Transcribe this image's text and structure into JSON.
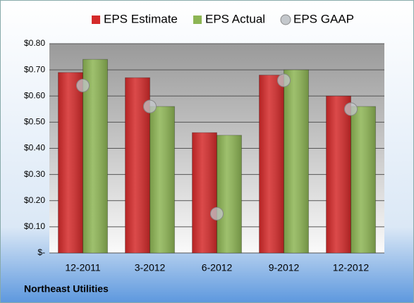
{
  "chart_data": {
    "type": "bar",
    "categories": [
      "12-2011",
      "3-2012",
      "6-2012",
      "9-2012",
      "12-2012"
    ],
    "series": [
      {
        "name": "EPS Estimate",
        "color": "#d42a2a",
        "marker": "bar",
        "values": [
          0.69,
          0.67,
          0.46,
          0.68,
          0.6
        ]
      },
      {
        "name": "EPS Actual",
        "color": "#8db554",
        "marker": "bar",
        "values": [
          0.74,
          0.56,
          0.45,
          0.7,
          0.56
        ]
      },
      {
        "name": "EPS GAAP",
        "color": "#c4c8cc",
        "marker": "circle",
        "values": [
          0.64,
          0.56,
          0.15,
          0.66,
          0.55
        ]
      }
    ],
    "ylim": [
      0,
      0.8
    ],
    "yticks": [
      {
        "value": 0,
        "label": "$-"
      },
      {
        "value": 0.1,
        "label": "$0.10"
      },
      {
        "value": 0.2,
        "label": "$0.20"
      },
      {
        "value": 0.3,
        "label": "$0.30"
      },
      {
        "value": 0.4,
        "label": "$0.40"
      },
      {
        "value": 0.5,
        "label": "$0.50"
      },
      {
        "value": 0.6,
        "label": "$0.60"
      },
      {
        "value": 0.7,
        "label": "$0.70"
      },
      {
        "value": 0.8,
        "label": "$0.80"
      }
    ],
    "grid": true,
    "legend": "top",
    "footnote": "Northeast Utilities"
  }
}
